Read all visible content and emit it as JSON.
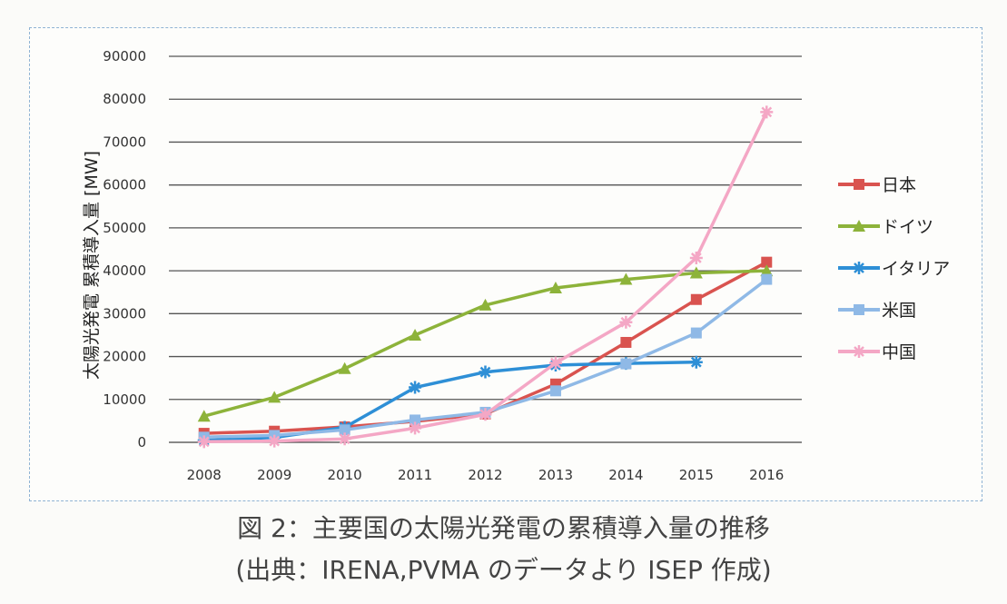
{
  "chart_data": {
    "type": "line",
    "ylabel": "太陽光発電 累積導入量 [MW]",
    "xlabel": "",
    "ylim": [
      0,
      90000
    ],
    "yticks": [
      "90000",
      "80000",
      "70000",
      "60000",
      "50000",
      "40000",
      "30000",
      "20000",
      "10000",
      "0"
    ],
    "categories": [
      "2008",
      "2009",
      "2010",
      "2011",
      "2012",
      "2013",
      "2014",
      "2015",
      "2016"
    ],
    "grid": true,
    "legend_position": "right",
    "series": [
      {
        "name": "日本",
        "color": "#d9534f",
        "marker": "square",
        "values": [
          2100,
          2600,
          3600,
          4900,
          6600,
          13600,
          23300,
          33300,
          42000
        ]
      },
      {
        "name": "ドイツ",
        "color": "#8db33a",
        "marker": "triangle",
        "values": [
          6100,
          10500,
          17200,
          25000,
          32000,
          36000,
          38000,
          39500,
          40000
        ]
      },
      {
        "name": "イタリア",
        "color": "#2e8fd6",
        "marker": "star",
        "values": [
          450,
          1150,
          3500,
          12800,
          16400,
          18000,
          18400,
          18700,
          null
        ]
      },
      {
        "name": "米国",
        "color": "#8fb9e6",
        "marker": "square",
        "values": [
          1200,
          1600,
          2900,
          5200,
          7000,
          12000,
          18300,
          25500,
          38000
        ]
      },
      {
        "name": "中国",
        "color": "#f4a7c5",
        "marker": "star",
        "values": [
          140,
          300,
          800,
          3300,
          6500,
          18500,
          28000,
          43000,
          77000
        ]
      }
    ]
  },
  "caption": {
    "line1": "図 2：主要国の太陽光発電の累積導入量の推移",
    "line2": "(出典：IRENA,PVMA のデータより ISEP 作成)"
  }
}
